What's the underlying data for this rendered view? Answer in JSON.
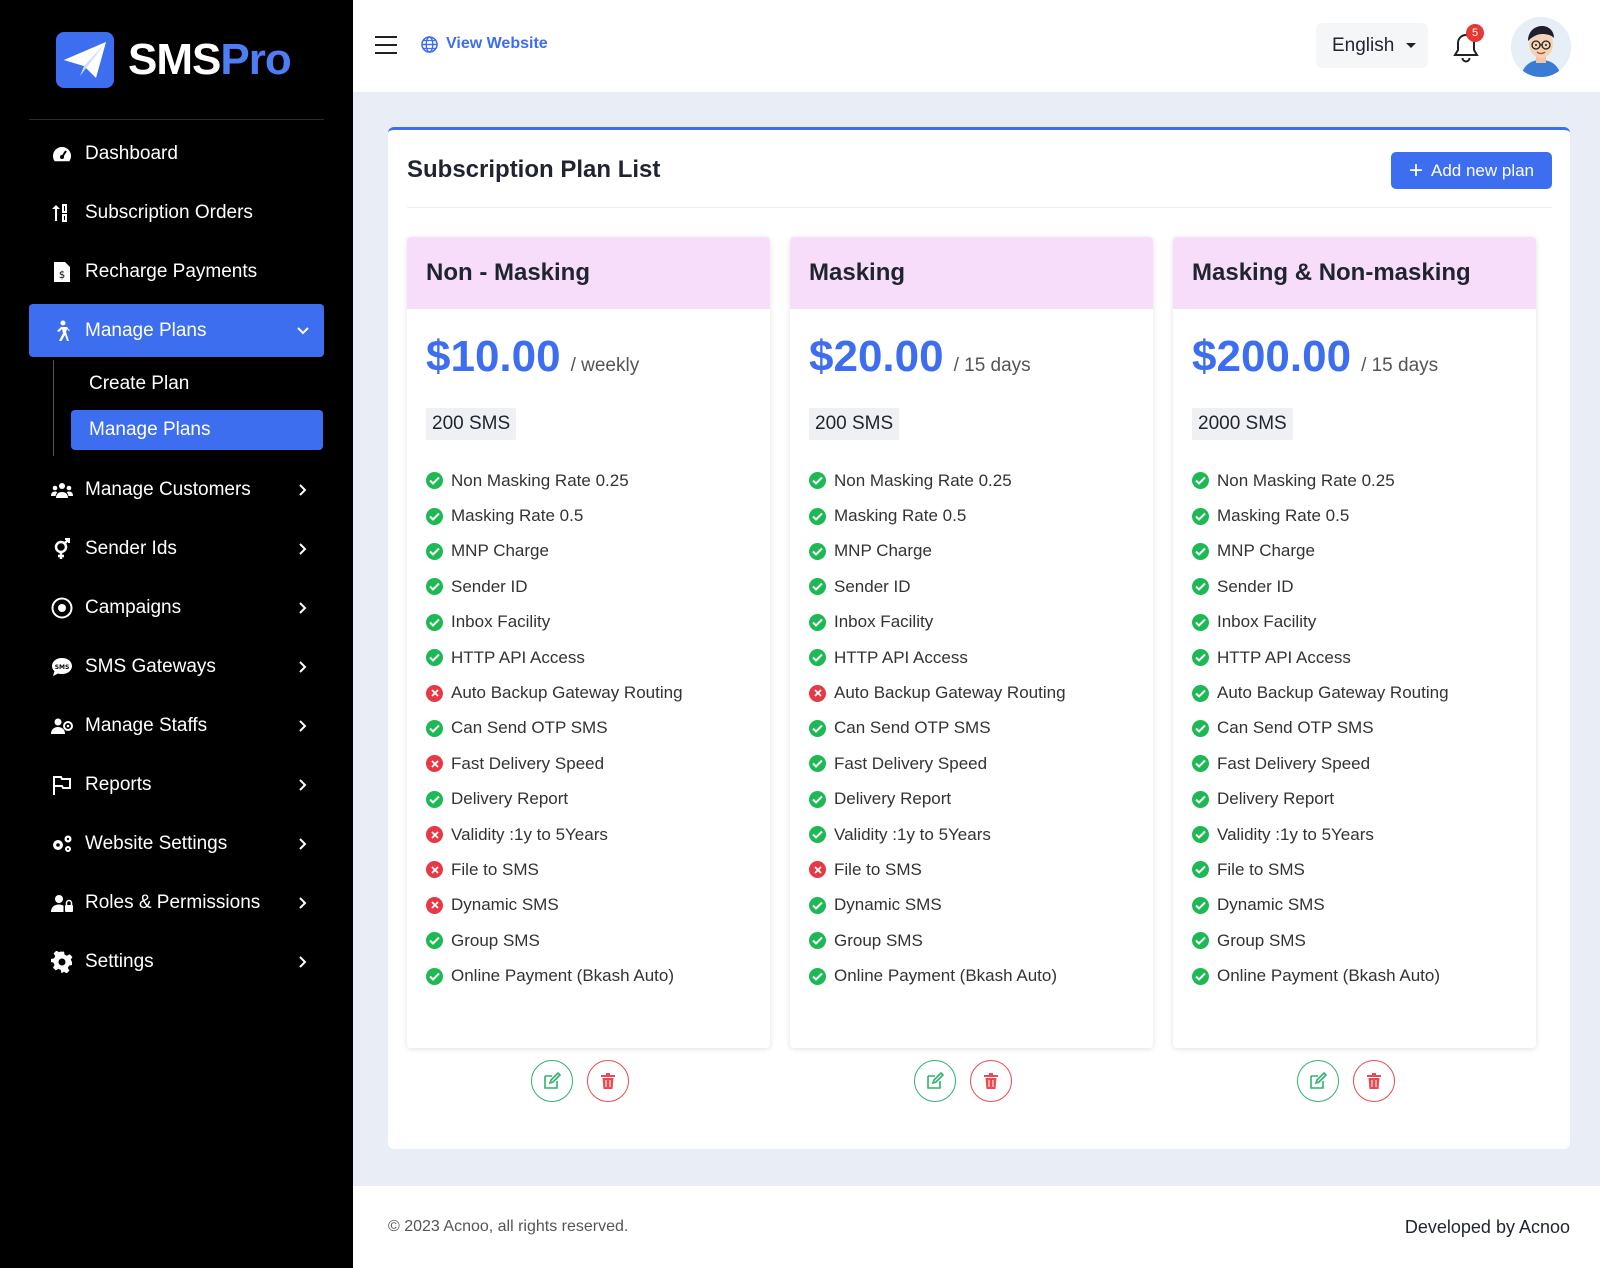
{
  "brand": {
    "name_part1": "SMS",
    "name_part2": "Pro",
    "accent": "#3e6ef0"
  },
  "sidebar": {
    "items": [
      {
        "label": "Dashboard",
        "icon": "gauge-icon"
      },
      {
        "label": "Subscription Orders",
        "icon": "sort-icon"
      },
      {
        "label": "Recharge Payments",
        "icon": "invoice-icon"
      },
      {
        "label": "Manage Plans",
        "icon": "walking-person-icon",
        "active": true,
        "children": [
          {
            "label": "Create Plan"
          },
          {
            "label": "Manage Plans",
            "active": true
          }
        ]
      },
      {
        "label": "Manage Customers",
        "icon": "users-icon"
      },
      {
        "label": "Sender Ids",
        "icon": "gender-icon"
      },
      {
        "label": "Campaigns",
        "icon": "campaign-icon"
      },
      {
        "label": "SMS Gateways",
        "icon": "sms-bubble-icon"
      },
      {
        "label": "Manage Staffs",
        "icon": "staff-icon"
      },
      {
        "label": "Reports",
        "icon": "flag-icon"
      },
      {
        "label": "Website Settings",
        "icon": "cogs-icon"
      },
      {
        "label": "Roles & Permissions",
        "icon": "user-lock-icon"
      },
      {
        "label": "Settings",
        "icon": "gear-icon"
      }
    ]
  },
  "header": {
    "view_website": "View Website",
    "language": "English",
    "notification_count": "5"
  },
  "panel": {
    "title": "Subscription Plan List",
    "add_button": "Add new plan"
  },
  "plans": [
    {
      "name": "Non - Masking",
      "price": "$10.00",
      "period": "/ weekly",
      "sms": "200 SMS",
      "features": [
        {
          "label": "Non Masking Rate 0.25",
          "ok": true
        },
        {
          "label": "Masking Rate 0.5",
          "ok": true
        },
        {
          "label": "MNP Charge",
          "ok": true
        },
        {
          "label": "Sender ID",
          "ok": true
        },
        {
          "label": "Inbox Facility",
          "ok": true
        },
        {
          "label": "HTTP API Access",
          "ok": true
        },
        {
          "label": "Auto Backup Gateway Routing",
          "ok": false
        },
        {
          "label": "Can Send OTP SMS",
          "ok": true
        },
        {
          "label": "Fast Delivery Speed",
          "ok": false
        },
        {
          "label": "Delivery Report",
          "ok": true
        },
        {
          "label": "Validity :1y to 5Years",
          "ok": false
        },
        {
          "label": "File to SMS",
          "ok": false
        },
        {
          "label": "Dynamic SMS",
          "ok": false
        },
        {
          "label": "Group SMS",
          "ok": true
        },
        {
          "label": "Online Payment (Bkash Auto)",
          "ok": true
        }
      ]
    },
    {
      "name": "Masking",
      "price": "$20.00",
      "period": "/ 15 days",
      "sms": "200 SMS",
      "features": [
        {
          "label": "Non Masking Rate 0.25",
          "ok": true
        },
        {
          "label": "Masking Rate 0.5",
          "ok": true
        },
        {
          "label": "MNP Charge",
          "ok": true
        },
        {
          "label": "Sender ID",
          "ok": true
        },
        {
          "label": "Inbox Facility",
          "ok": true
        },
        {
          "label": "HTTP API Access",
          "ok": true
        },
        {
          "label": "Auto Backup Gateway Routing",
          "ok": false
        },
        {
          "label": "Can Send OTP SMS",
          "ok": true
        },
        {
          "label": "Fast Delivery Speed",
          "ok": true
        },
        {
          "label": "Delivery Report",
          "ok": true
        },
        {
          "label": "Validity :1y to 5Years",
          "ok": true
        },
        {
          "label": "File to SMS",
          "ok": false
        },
        {
          "label": "Dynamic SMS",
          "ok": true
        },
        {
          "label": "Group SMS",
          "ok": true
        },
        {
          "label": "Online Payment (Bkash Auto)",
          "ok": true
        }
      ]
    },
    {
      "name": "Masking & Non-masking",
      "price": "$200.00",
      "period": "/ 15 days",
      "sms": "2000 SMS",
      "features": [
        {
          "label": "Non Masking Rate 0.25",
          "ok": true
        },
        {
          "label": "Masking Rate 0.5",
          "ok": true
        },
        {
          "label": "MNP Charge",
          "ok": true
        },
        {
          "label": "Sender ID",
          "ok": true
        },
        {
          "label": "Inbox Facility",
          "ok": true
        },
        {
          "label": "HTTP API Access",
          "ok": true
        },
        {
          "label": "Auto Backup Gateway Routing",
          "ok": true
        },
        {
          "label": "Can Send OTP SMS",
          "ok": true
        },
        {
          "label": "Fast Delivery Speed",
          "ok": true
        },
        {
          "label": "Delivery Report",
          "ok": true
        },
        {
          "label": "Validity :1y to 5Years",
          "ok": true
        },
        {
          "label": "File to SMS",
          "ok": true
        },
        {
          "label": "Dynamic SMS",
          "ok": true
        },
        {
          "label": "Group SMS",
          "ok": true
        },
        {
          "label": "Online Payment (Bkash Auto)",
          "ok": true
        }
      ]
    }
  ],
  "footer": {
    "copyright": "© 2023 Acnoo, all rights reserved.",
    "developed_by": "Developed by Acnoo"
  }
}
